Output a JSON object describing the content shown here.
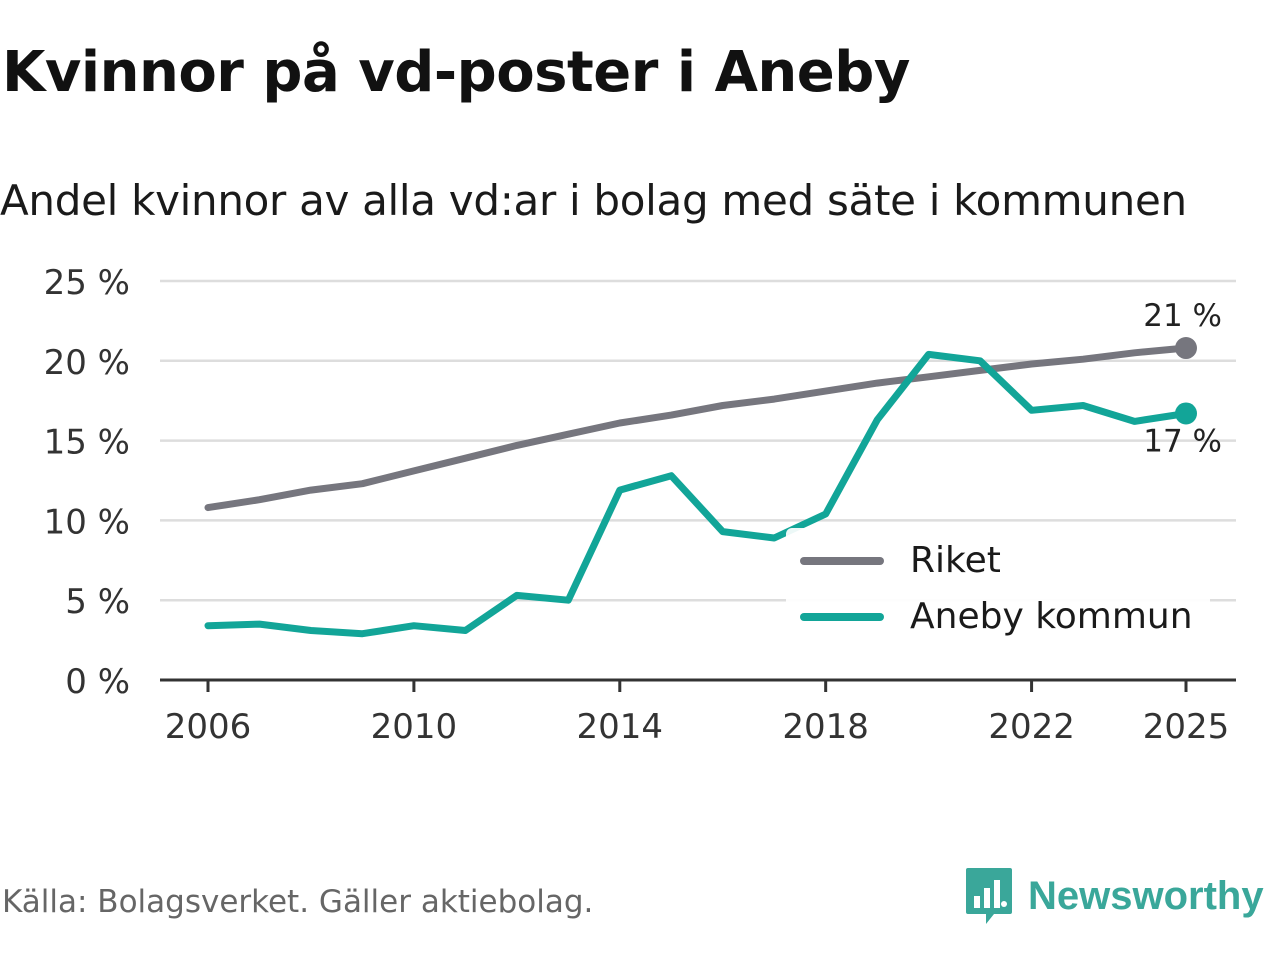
{
  "title": "Kvinnor på vd-poster i Aneby",
  "subtitle": "Andel kvinnor av alla vd:ar i bolag med säte i kommunen",
  "source": "Källa: Bolagsverket. Gäller aktiebolag.",
  "brand": {
    "name": "Newsworthy",
    "icon": "newsworthy-logo-icon",
    "color": "#3aa79a"
  },
  "colors": {
    "riket": "#76767e",
    "aneby": "#12a598",
    "grid": "#dddddd",
    "axis": "#333333"
  },
  "chart_data": {
    "type": "line",
    "title": "Kvinnor på vd-poster i Aneby",
    "subtitle": "Andel kvinnor av alla vd:ar i bolag med säte i kommunen",
    "xlabel": "",
    "ylabel": "",
    "xlim": [
      2006,
      2025
    ],
    "ylim": [
      0,
      25
    ],
    "grid": true,
    "legend_position": "bottom-right",
    "x_ticks": [
      2006,
      2010,
      2014,
      2018,
      2022,
      2025
    ],
    "x_tick_labels": [
      "2006",
      "2010",
      "2014",
      "2018",
      "2022",
      "2025"
    ],
    "y_ticks": [
      0,
      5,
      10,
      15,
      20,
      25
    ],
    "y_tick_labels": [
      "0 %",
      "5 %",
      "10 %",
      "15 %",
      "20 %",
      "25 %"
    ],
    "x": [
      2006,
      2007,
      2008,
      2009,
      2010,
      2011,
      2012,
      2013,
      2014,
      2015,
      2016,
      2017,
      2018,
      2019,
      2020,
      2021,
      2022,
      2023,
      2024,
      2025
    ],
    "series": [
      {
        "name": "Riket",
        "color": "#76767e",
        "values": [
          10.8,
          11.3,
          11.9,
          12.3,
          13.1,
          13.9,
          14.7,
          15.4,
          16.1,
          16.6,
          17.2,
          17.6,
          18.1,
          18.6,
          19.0,
          19.4,
          19.8,
          20.1,
          20.5,
          20.8
        ],
        "end_label": "21 %"
      },
      {
        "name": "Aneby kommun",
        "color": "#12a598",
        "values": [
          3.4,
          3.5,
          3.1,
          2.9,
          3.4,
          3.1,
          5.3,
          5.0,
          11.9,
          12.8,
          9.3,
          8.9,
          10.4,
          16.3,
          20.4,
          20.0,
          16.9,
          17.2,
          16.2,
          16.7
        ],
        "end_label": "17 %"
      }
    ]
  }
}
